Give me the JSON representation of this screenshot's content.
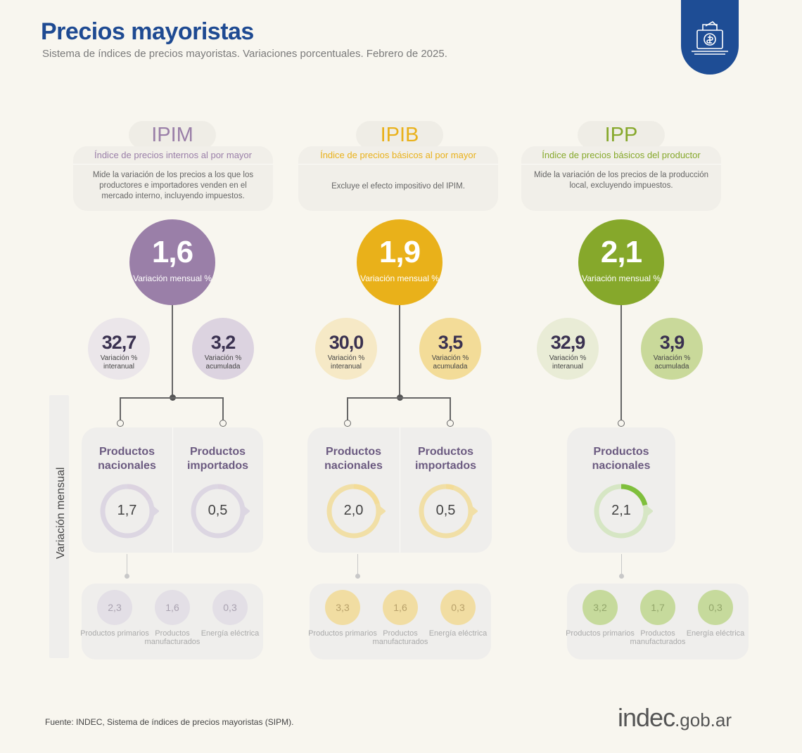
{
  "header": {
    "title": "Precios mayoristas",
    "subtitle": "Sistema de índices de precios mayoristas. Variaciones porcentuales. Febrero de 2025."
  },
  "side_label": "Variación mensual",
  "columns": [
    {
      "code": "IPIM",
      "name": "Índice de precios internos al por mayor",
      "description": "Mide la variación de los precios a los que los productores e importadores venden en el mercado interno, incluyendo impuestos.",
      "color": "#9a7fa8",
      "light": "#dcd3e0",
      "mensual": "1,6",
      "mensual_label": "Variación mensual %",
      "interanual": "32,7",
      "interanual_label": "Variación % interanual",
      "acumulada": "3,2",
      "acumulada_label": "Variación % acumulada",
      "products": [
        {
          "label": "Productos nacionales",
          "value": "1,7"
        },
        {
          "label": "Productos importados",
          "value": "0,5"
        }
      ],
      "sub": [
        {
          "value": "2,3",
          "label": "Productos primarios"
        },
        {
          "value": "1,6",
          "label": "Productos manufacturados"
        },
        {
          "value": "0,3",
          "label": "Energía eléctrica"
        }
      ]
    },
    {
      "code": "IPIB",
      "name": "Índice de precios básicos al por mayor",
      "description": "Excluye el efecto impositivo del IPIM.",
      "color": "#e9b11a",
      "light": "#f3dc98",
      "mensual": "1,9",
      "mensual_label": "Variación mensual %",
      "interanual": "30,0",
      "interanual_label": "Variación % interanual",
      "acumulada": "3,5",
      "acumulada_label": "Variación % acumulada",
      "products": [
        {
          "label": "Productos nacionales",
          "value": "2,0"
        },
        {
          "label": "Productos importados",
          "value": "0,5"
        }
      ],
      "sub": [
        {
          "value": "3,3",
          "label": "Productos primarios"
        },
        {
          "value": "1,6",
          "label": "Productos manufacturados"
        },
        {
          "value": "0,3",
          "label": "Energía eléctrica"
        }
      ]
    },
    {
      "code": "IPP",
      "name": "Índice de precios básicos del productor",
      "description": "Mide la variación de los precios de la producción local, excluyendo impuestos.",
      "color": "#86a82b",
      "light": "#c9d99a",
      "mensual": "2,1",
      "mensual_label": "Variación mensual %",
      "interanual": "32,9",
      "interanual_label": "Variación % interanual",
      "acumulada": "3,9",
      "acumulada_label": "Variación % acumulada",
      "products": [
        {
          "label": "Productos nacionales",
          "value": "2,1"
        }
      ],
      "sub": [
        {
          "value": "3,2",
          "label": "Productos primarios"
        },
        {
          "value": "1,7",
          "label": "Productos manufacturados"
        },
        {
          "value": "0,3",
          "label": "Energía eléctrica"
        }
      ]
    }
  ],
  "footer": {
    "source": "Fuente: INDEC, Sistema de índices de precios mayoristas (SIPM).",
    "brand_main": "indec",
    "brand_suffix": ".gob.ar"
  },
  "icons": {
    "logo_badge": "price-tag-box-icon"
  }
}
